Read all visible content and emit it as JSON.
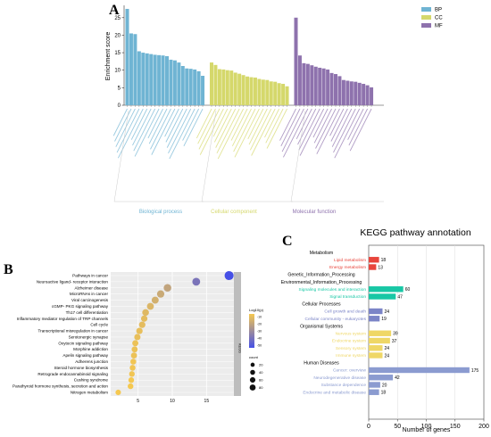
{
  "panels": {
    "a": {
      "letter": "A"
    },
    "b": {
      "letter": "B"
    },
    "c": {
      "letter": "C"
    }
  },
  "chart_data": [
    {
      "type": "bar",
      "ylabel": "Enrichment score",
      "ylim": [
        0,
        28
      ],
      "yticks": [
        0,
        5,
        10,
        15,
        20,
        25
      ],
      "legend": {
        "placement": "top-right",
        "items": [
          "BP",
          "CC",
          "MF"
        ]
      },
      "series": [
        {
          "name": "BP",
          "group_label": "Biological process",
          "color": "#6fb4d3",
          "values": [
            27.5,
            20.5,
            20.3,
            15.4,
            15.0,
            14.8,
            14.6,
            14.4,
            14.3,
            14.2,
            14.0,
            13.0,
            12.8,
            12.2,
            11.2,
            10.5,
            10.4,
            10.2,
            9.7,
            8.4
          ]
        },
        {
          "name": "CC",
          "group_label": "Cellular component",
          "color": "#d5d86b",
          "values": [
            12.2,
            11.5,
            10.3,
            10.2,
            10.0,
            9.9,
            9.3,
            9.0,
            8.6,
            8.2,
            8.0,
            7.9,
            7.5,
            7.3,
            7.2,
            6.8,
            6.7,
            6.3,
            6.1,
            5.4
          ]
        },
        {
          "name": "MF",
          "group_label": "Molecular function",
          "color": "#8e72ad",
          "values": [
            25.0,
            14.2,
            12.0,
            11.8,
            11.4,
            11.0,
            10.7,
            10.5,
            10.2,
            9.2,
            8.9,
            8.3,
            7.2,
            7.0,
            6.8,
            6.7,
            6.4,
            6.1,
            5.7,
            5.1
          ]
        }
      ]
    },
    {
      "type": "scatter",
      "xticks": [
        5,
        10,
        15
      ],
      "xlim": [
        1,
        19
      ],
      "color_legend": {
        "title": "Log10(p)",
        "ticks": [
          "-10",
          "-20",
          "-30",
          "-40",
          "-50"
        ]
      },
      "size_legend": {
        "title": "count",
        "values": [
          20,
          40,
          60,
          80
        ]
      },
      "strip_label": "KEGG",
      "categories": [
        "Pathways in cancer",
        "Neuroactive ligand- receptor interaction",
        "Alzheimer disease",
        "MicroRNAs in cancer",
        "Viral carcinogenesis",
        "cGMP- PKG signaling pathway",
        "Th17 cell differentiation",
        "Inflammatory mediator regulation of TRP channels",
        "Cell cycle",
        "Transcriptional misregulation in cancer",
        "Serotonergic synapse",
        "Oxytocin signaling pathway",
        "Morphine addiction",
        "Apelin signaling pathway",
        "Adherens junction",
        "Steroid hormone biosynthesis",
        "Retrograde endocannabinoid signaling",
        "Cushing syndrome",
        "Parathyroid hormone synthesis, secretion and action",
        "Nitrogen metabolism"
      ],
      "x": [
        18.3,
        13.5,
        9.3,
        8.3,
        7.5,
        6.8,
        6.1,
        5.9,
        5.6,
        5.2,
        4.9,
        4.6,
        4.5,
        4.4,
        4.3,
        4.2,
        4.1,
        4.0,
        3.9,
        2.1
      ],
      "count": [
        80,
        55,
        50,
        45,
        40,
        38,
        35,
        30,
        30,
        30,
        28,
        26,
        25,
        25,
        22,
        22,
        20,
        20,
        20,
        18
      ],
      "log10p": [
        -50,
        -38,
        -22,
        -20,
        -18,
        -16,
        -15,
        -14,
        -14,
        -13,
        -13,
        -12,
        -12,
        -12,
        -11,
        -11,
        -11,
        -10,
        -10,
        -10
      ]
    },
    {
      "type": "bar",
      "orientation": "horizontal",
      "title": "KEGG pathway annotation",
      "xlabel": "Number of genes",
      "xlim": [
        0,
        200
      ],
      "xticks": [
        0,
        50,
        100,
        150,
        200
      ],
      "groups": [
        {
          "name": "Metabolism",
          "items": [
            {
              "label": "Lipid metabolism",
              "value": 18,
              "color": "#e8453c"
            },
            {
              "label": "Energy metabolism",
              "value": 13,
              "color": "#e8453c"
            }
          ]
        },
        {
          "name": "Genetic_Information_Processing",
          "items": []
        },
        {
          "name": "Environmental_Information_Processing",
          "items": [
            {
              "label": "Signaling molecules and interaction",
              "value": 60,
              "color": "#18c7a5"
            },
            {
              "label": "Signal transduction",
              "value": 47,
              "color": "#18c7a5"
            }
          ]
        },
        {
          "name": "Cellular Processes",
          "items": [
            {
              "label": "Cell growth and death",
              "value": 24,
              "color": "#7b84c7"
            },
            {
              "label": "Cellular community - eukaryotes",
              "value": 19,
              "color": "#7b84c7"
            }
          ]
        },
        {
          "name": "Organismal Systems",
          "items": [
            {
              "label": "Nervous system",
              "value": 39,
              "color": "#efd766"
            },
            {
              "label": "Endocrine system",
              "value": 37,
              "color": "#efd766"
            },
            {
              "label": "Sensory system",
              "value": 24,
              "color": "#efd766"
            },
            {
              "label": "Immune system",
              "value": 24,
              "color": "#efd766"
            }
          ]
        },
        {
          "name": "Human Diseases",
          "items": [
            {
              "label": "Cancer: overview",
              "value": 175,
              "color": "#8b9bd0"
            },
            {
              "label": "Neurodegenerative disease",
              "value": 42,
              "color": "#8b9bd0"
            },
            {
              "label": "Substance dependence",
              "value": 20,
              "color": "#8b9bd0"
            },
            {
              "label": "Endocrine and metabolic disease",
              "value": 18,
              "color": "#8b9bd0"
            }
          ]
        }
      ]
    }
  ]
}
